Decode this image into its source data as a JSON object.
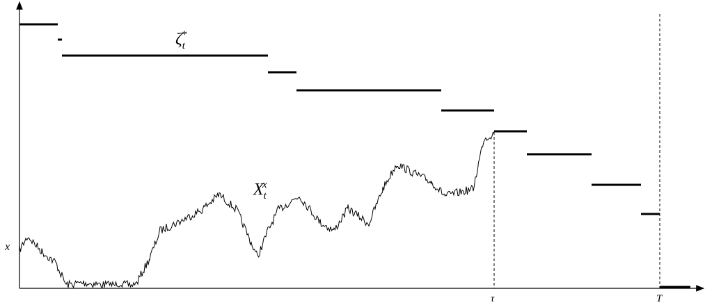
{
  "labels": {
    "zeta": {
      "base": "ζ",
      "sub": "t",
      "sup": "*"
    },
    "process": {
      "base": "X",
      "sub": "t",
      "sup": "x"
    },
    "start": "x",
    "stop_time": "τ",
    "horizon": "T"
  }
}
